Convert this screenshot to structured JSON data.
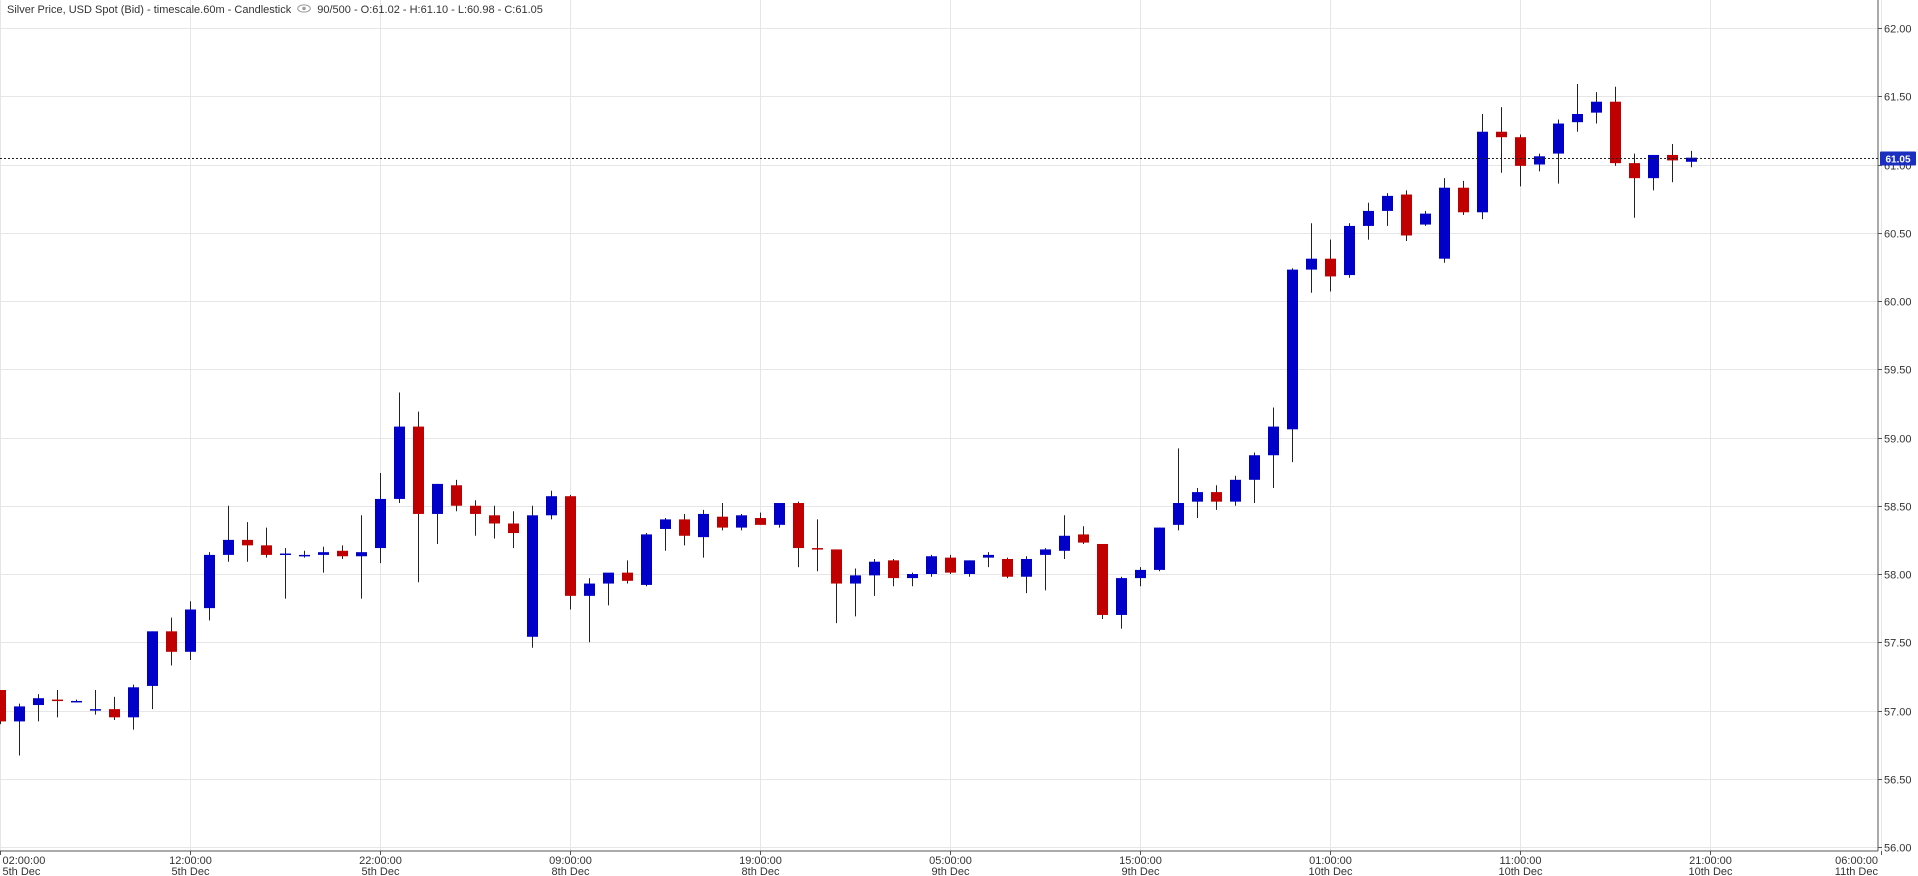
{
  "header": {
    "title": "Silver Price, USD Spot (Bid) - timescale.60m - Candlestick",
    "ohlc": "90/500 - O:61.02 - H:61.10 - L:60.98 - C:61.05",
    "eye_icon": "eye-icon"
  },
  "last_price_label": "61.05",
  "colors": {
    "up": "#0000c8",
    "down": "#c00000",
    "wick": "#222222",
    "grid": "#e6e6e6",
    "badge": "#1a2fbf"
  },
  "chart_data": {
    "type": "candlestick",
    "ylim": [
      56.0,
      62.0
    ],
    "y_ticks": [
      "56.00",
      "56.50",
      "57.00",
      "57.50",
      "58.00",
      "58.50",
      "59.00",
      "59.50",
      "60.00",
      "60.50",
      "61.00",
      "61.50",
      "62.00"
    ],
    "x_ticks": [
      {
        "time": "02:00:00",
        "date": "5th Dec",
        "index": 0
      },
      {
        "time": "12:00:00",
        "date": "5th Dec",
        "index": 10
      },
      {
        "time": "22:00:00",
        "date": "5th Dec",
        "index": 20
      },
      {
        "time": "09:00:00",
        "date": "8th Dec",
        "index": 30
      },
      {
        "time": "19:00:00",
        "date": "8th Dec",
        "index": 40
      },
      {
        "time": "05:00:00",
        "date": "9th Dec",
        "index": 50
      },
      {
        "time": "15:00:00",
        "date": "9th Dec",
        "index": 60
      },
      {
        "time": "01:00:00",
        "date": "10th Dec",
        "index": 70
      },
      {
        "time": "11:00:00",
        "date": "10th Dec",
        "index": 80
      },
      {
        "time": "21:00:00",
        "date": "10th Dec",
        "index": 90
      },
      {
        "time": "06:00:00",
        "date": "11th Dec",
        "index": 99
      }
    ],
    "last_close": 61.05,
    "candles": [
      {
        "o": 57.15,
        "h": 57.15,
        "l": 56.9,
        "c": 56.92
      },
      {
        "o": 56.92,
        "h": 57.05,
        "l": 56.67,
        "c": 57.03
      },
      {
        "o": 57.04,
        "h": 57.12,
        "l": 56.92,
        "c": 57.09
      },
      {
        "o": 57.08,
        "h": 57.15,
        "l": 56.95,
        "c": 57.07
      },
      {
        "o": 57.07,
        "h": 57.08,
        "l": 57.06,
        "c": 57.07
      },
      {
        "o": 57.0,
        "h": 57.15,
        "l": 56.97,
        "c": 57.01
      },
      {
        "o": 57.01,
        "h": 57.1,
        "l": 56.93,
        "c": 56.95
      },
      {
        "o": 56.95,
        "h": 57.19,
        "l": 56.86,
        "c": 57.17
      },
      {
        "o": 57.18,
        "h": 57.58,
        "l": 57.01,
        "c": 57.58
      },
      {
        "o": 57.58,
        "h": 57.68,
        "l": 57.33,
        "c": 57.43
      },
      {
        "o": 57.43,
        "h": 57.8,
        "l": 57.37,
        "c": 57.74
      },
      {
        "o": 57.75,
        "h": 58.16,
        "l": 57.66,
        "c": 58.14
      },
      {
        "o": 58.14,
        "h": 58.5,
        "l": 58.09,
        "c": 58.25
      },
      {
        "o": 58.25,
        "h": 58.38,
        "l": 58.09,
        "c": 58.21
      },
      {
        "o": 58.21,
        "h": 58.34,
        "l": 58.12,
        "c": 58.14
      },
      {
        "o": 58.15,
        "h": 58.19,
        "l": 57.82,
        "c": 58.15
      },
      {
        "o": 58.14,
        "h": 58.17,
        "l": 58.12,
        "c": 58.14
      },
      {
        "o": 58.14,
        "h": 58.2,
        "l": 58.01,
        "c": 58.16
      },
      {
        "o": 58.17,
        "h": 58.21,
        "l": 58.11,
        "c": 58.13
      },
      {
        "o": 58.13,
        "h": 58.43,
        "l": 57.82,
        "c": 58.16
      },
      {
        "o": 58.19,
        "h": 58.74,
        "l": 58.08,
        "c": 58.55
      },
      {
        "o": 58.55,
        "h": 59.33,
        "l": 58.52,
        "c": 59.08
      },
      {
        "o": 59.08,
        "h": 59.19,
        "l": 57.94,
        "c": 58.44
      },
      {
        "o": 58.44,
        "h": 58.66,
        "l": 58.22,
        "c": 58.66
      },
      {
        "o": 58.65,
        "h": 58.69,
        "l": 58.46,
        "c": 58.5
      },
      {
        "o": 58.5,
        "h": 58.54,
        "l": 58.28,
        "c": 58.44
      },
      {
        "o": 58.43,
        "h": 58.5,
        "l": 58.26,
        "c": 58.37
      },
      {
        "o": 58.37,
        "h": 58.46,
        "l": 58.19,
        "c": 58.3
      },
      {
        "o": 57.54,
        "h": 58.5,
        "l": 57.46,
        "c": 58.43
      },
      {
        "o": 58.43,
        "h": 58.61,
        "l": 58.4,
        "c": 58.57
      },
      {
        "o": 58.57,
        "h": 58.58,
        "l": 57.74,
        "c": 57.84
      },
      {
        "o": 57.84,
        "h": 57.97,
        "l": 57.5,
        "c": 57.93
      },
      {
        "o": 57.93,
        "h": 58.0,
        "l": 57.77,
        "c": 58.01
      },
      {
        "o": 58.01,
        "h": 58.1,
        "l": 57.93,
        "c": 57.95
      },
      {
        "o": 57.92,
        "h": 58.3,
        "l": 57.91,
        "c": 58.29
      },
      {
        "o": 58.33,
        "h": 58.41,
        "l": 58.17,
        "c": 58.4
      },
      {
        "o": 58.4,
        "h": 58.44,
        "l": 58.21,
        "c": 58.28
      },
      {
        "o": 58.27,
        "h": 58.47,
        "l": 58.12,
        "c": 58.44
      },
      {
        "o": 58.42,
        "h": 58.52,
        "l": 58.32,
        "c": 58.34
      },
      {
        "o": 58.34,
        "h": 58.44,
        "l": 58.32,
        "c": 58.43
      },
      {
        "o": 58.41,
        "h": 58.45,
        "l": 58.36,
        "c": 58.36
      },
      {
        "o": 58.36,
        "h": 58.52,
        "l": 58.34,
        "c": 58.52
      },
      {
        "o": 58.52,
        "h": 58.53,
        "l": 58.05,
        "c": 58.19
      },
      {
        "o": 58.19,
        "h": 58.4,
        "l": 58.02,
        "c": 58.18
      },
      {
        "o": 58.18,
        "h": 58.18,
        "l": 57.64,
        "c": 57.93
      },
      {
        "o": 57.93,
        "h": 58.04,
        "l": 57.69,
        "c": 57.99
      },
      {
        "o": 57.99,
        "h": 58.11,
        "l": 57.84,
        "c": 58.09
      },
      {
        "o": 58.1,
        "h": 58.11,
        "l": 57.91,
        "c": 57.97
      },
      {
        "o": 57.97,
        "h": 58.01,
        "l": 57.91,
        "c": 58.0
      },
      {
        "o": 58.0,
        "h": 58.14,
        "l": 57.98,
        "c": 58.13
      },
      {
        "o": 58.12,
        "h": 58.14,
        "l": 58.0,
        "c": 58.01
      },
      {
        "o": 58.0,
        "h": 58.1,
        "l": 57.98,
        "c": 58.1
      },
      {
        "o": 58.12,
        "h": 58.16,
        "l": 58.05,
        "c": 58.14
      },
      {
        "o": 58.11,
        "h": 58.12,
        "l": 57.97,
        "c": 57.98
      },
      {
        "o": 57.98,
        "h": 58.13,
        "l": 57.86,
        "c": 58.11
      },
      {
        "o": 58.14,
        "h": 58.19,
        "l": 57.88,
        "c": 58.18
      },
      {
        "o": 58.17,
        "h": 58.43,
        "l": 58.11,
        "c": 58.28
      },
      {
        "o": 58.29,
        "h": 58.35,
        "l": 58.22,
        "c": 58.23
      },
      {
        "o": 58.22,
        "h": 58.22,
        "l": 57.67,
        "c": 57.7
      },
      {
        "o": 57.7,
        "h": 57.98,
        "l": 57.6,
        "c": 57.97
      },
      {
        "o": 57.97,
        "h": 58.05,
        "l": 57.91,
        "c": 58.03
      },
      {
        "o": 58.03,
        "h": 58.34,
        "l": 58.02,
        "c": 58.34
      },
      {
        "o": 58.36,
        "h": 58.92,
        "l": 58.32,
        "c": 58.52
      },
      {
        "o": 58.53,
        "h": 58.63,
        "l": 58.41,
        "c": 58.6
      },
      {
        "o": 58.6,
        "h": 58.65,
        "l": 58.47,
        "c": 58.53
      },
      {
        "o": 58.53,
        "h": 58.72,
        "l": 58.5,
        "c": 58.69
      },
      {
        "o": 58.69,
        "h": 58.89,
        "l": 58.52,
        "c": 58.87
      },
      {
        "o": 58.87,
        "h": 59.22,
        "l": 58.63,
        "c": 59.08
      },
      {
        "o": 59.06,
        "h": 60.24,
        "l": 58.82,
        "c": 60.23
      },
      {
        "o": 60.23,
        "h": 60.57,
        "l": 60.06,
        "c": 60.31
      },
      {
        "o": 60.31,
        "h": 60.45,
        "l": 60.07,
        "c": 60.18
      },
      {
        "o": 60.19,
        "h": 60.57,
        "l": 60.17,
        "c": 60.55
      },
      {
        "o": 60.55,
        "h": 60.72,
        "l": 60.45,
        "c": 60.66
      },
      {
        "o": 60.66,
        "h": 60.79,
        "l": 60.55,
        "c": 60.77
      },
      {
        "o": 60.78,
        "h": 60.81,
        "l": 60.44,
        "c": 60.48
      },
      {
        "o": 60.56,
        "h": 60.66,
        "l": 60.55,
        "c": 60.64
      },
      {
        "o": 60.31,
        "h": 60.9,
        "l": 60.28,
        "c": 60.83
      },
      {
        "o": 60.83,
        "h": 60.88,
        "l": 60.63,
        "c": 60.65
      },
      {
        "o": 60.65,
        "h": 61.37,
        "l": 60.6,
        "c": 61.24
      },
      {
        "o": 61.24,
        "h": 61.42,
        "l": 60.94,
        "c": 61.2
      },
      {
        "o": 61.2,
        "h": 61.22,
        "l": 60.84,
        "c": 60.99
      },
      {
        "o": 61.0,
        "h": 61.08,
        "l": 60.95,
        "c": 61.06
      },
      {
        "o": 61.08,
        "h": 61.33,
        "l": 60.86,
        "c": 61.3
      },
      {
        "o": 61.31,
        "h": 61.59,
        "l": 61.24,
        "c": 61.37
      },
      {
        "o": 61.38,
        "h": 61.53,
        "l": 61.3,
        "c": 61.46
      },
      {
        "o": 61.46,
        "h": 61.57,
        "l": 60.99,
        "c": 61.01
      },
      {
        "o": 61.01,
        "h": 61.08,
        "l": 60.61,
        "c": 60.9
      },
      {
        "o": 60.9,
        "h": 61.07,
        "l": 60.81,
        "c": 61.07
      },
      {
        "o": 61.07,
        "h": 61.15,
        "l": 60.87,
        "c": 61.03
      },
      {
        "o": 61.02,
        "h": 61.1,
        "l": 60.98,
        "c": 61.05
      }
    ]
  }
}
